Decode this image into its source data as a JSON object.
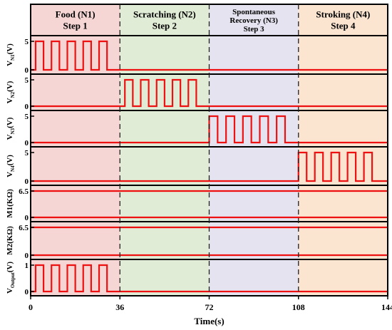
{
  "chart_data": {
    "type": "line",
    "xlabel": "Time(s)",
    "x_ticks": [
      "0",
      "36",
      "72",
      "108",
      "144"
    ],
    "x_range": [
      0,
      144
    ],
    "phases": [
      {
        "lines": [
          "Food (N1)",
          "Step 1"
        ],
        "color": "#f5d6d4",
        "x_range": [
          0,
          36
        ]
      },
      {
        "lines": [
          "Scratching (N2)",
          "Step 2"
        ],
        "color": "#e1ecd6",
        "x_range": [
          36,
          72
        ]
      },
      {
        "lines": [
          "Spontaneous",
          "Recovery (N3)",
          "Step 3"
        ],
        "color": "#e6e3f0",
        "x_range": [
          72,
          108
        ]
      },
      {
        "lines": [
          "Stroking (N4)",
          "Step 4"
        ],
        "color": "#fbe5d1",
        "x_range": [
          108,
          144
        ]
      }
    ],
    "series": [
      {
        "ylabel_main": "V",
        "ylabel_sub": "N1",
        "ylabel_unit": "(V)",
        "y_ticks": [
          "5",
          "0"
        ],
        "ylim": [
          0,
          5
        ],
        "signal": "square",
        "high": 5,
        "low": 0,
        "active_range": [
          2,
          34
        ],
        "pulses": 5
      },
      {
        "ylabel_main": "V",
        "ylabel_sub": "N2",
        "ylabel_unit": "(V)",
        "y_ticks": [
          "5",
          "0"
        ],
        "ylim": [
          0,
          5
        ],
        "signal": "square",
        "high": 5,
        "low": 0,
        "active_range": [
          38,
          70
        ],
        "pulses": 5
      },
      {
        "ylabel_main": "V",
        "ylabel_sub": "N3",
        "ylabel_unit": "(V)",
        "y_ticks": [
          "5",
          "0"
        ],
        "ylim": [
          0,
          5
        ],
        "signal": "square",
        "high": 5,
        "low": 0,
        "active_range": [
          72,
          106
        ],
        "pulses": 5
      },
      {
        "ylabel_main": "V",
        "ylabel_sub": "N4",
        "ylabel_unit": "(V)",
        "y_ticks": [
          "5",
          "0"
        ],
        "ylim": [
          0,
          5
        ],
        "signal": "square",
        "high": 5,
        "low": 0,
        "active_range": [
          108,
          141
        ],
        "pulses": 5
      },
      {
        "ylabel_main": "M1(KΩ)",
        "ylabel_sub": "",
        "ylabel_unit": "",
        "y_ticks": [
          "6.5",
          "0"
        ],
        "ylim": [
          0,
          6.5
        ],
        "signal": "constant",
        "value": 6.5
      },
      {
        "ylabel_main": "M2(KΩ)",
        "ylabel_sub": "",
        "ylabel_unit": "",
        "y_ticks": [
          "6.5",
          "0"
        ],
        "ylim": [
          0,
          6.5
        ],
        "signal": "constant",
        "value": 6.5
      },
      {
        "ylabel_main": "V",
        "ylabel_sub": "Output",
        "ylabel_unit": "(V)",
        "y_ticks": [
          "1",
          "0"
        ],
        "ylim": [
          0,
          1
        ],
        "signal": "square",
        "high": 1,
        "low": 0,
        "active_range": [
          2,
          34
        ],
        "pulses": 5
      }
    ],
    "line_color": "#ee1111",
    "grid": false,
    "legend": "none"
  }
}
